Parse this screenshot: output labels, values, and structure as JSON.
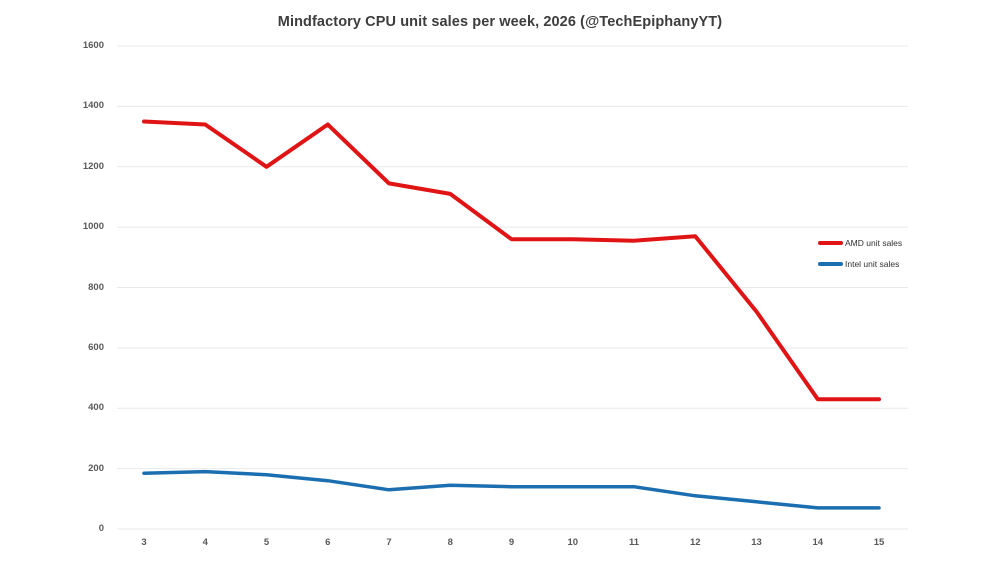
{
  "chart_data": {
    "type": "line",
    "title": "Mindfactory CPU unit sales per week, 2026 (@TechEpiphanyYT)",
    "xlabel": "",
    "ylabel": "",
    "x": [
      3,
      4,
      5,
      6,
      7,
      8,
      9,
      10,
      11,
      12,
      13,
      14,
      15
    ],
    "ylim": [
      0,
      1600
    ],
    "yticks": [
      0,
      200,
      400,
      600,
      800,
      1000,
      1200,
      1400,
      1600
    ],
    "grid": "horizontal-only",
    "legend_position": "right-middle",
    "series": [
      {
        "name": "AMD unit sales",
        "color": "#e01414",
        "line_width": 4,
        "values": [
          1350,
          1340,
          1200,
          1340,
          1145,
          1110,
          960,
          960,
          955,
          970,
          720,
          430,
          430
        ]
      },
      {
        "name": "Intel unit sales",
        "color": "#1b6fb0",
        "line_width": 3.5,
        "values": [
          185,
          190,
          180,
          160,
          130,
          145,
          140,
          140,
          140,
          110,
          90,
          70,
          70
        ]
      }
    ]
  },
  "style": {
    "background": "#ffffff",
    "title_color": "#3d3d3d",
    "tick_color": "#595959",
    "legend_text_color": "#303030",
    "grid_color": "#e9e9e9"
  }
}
